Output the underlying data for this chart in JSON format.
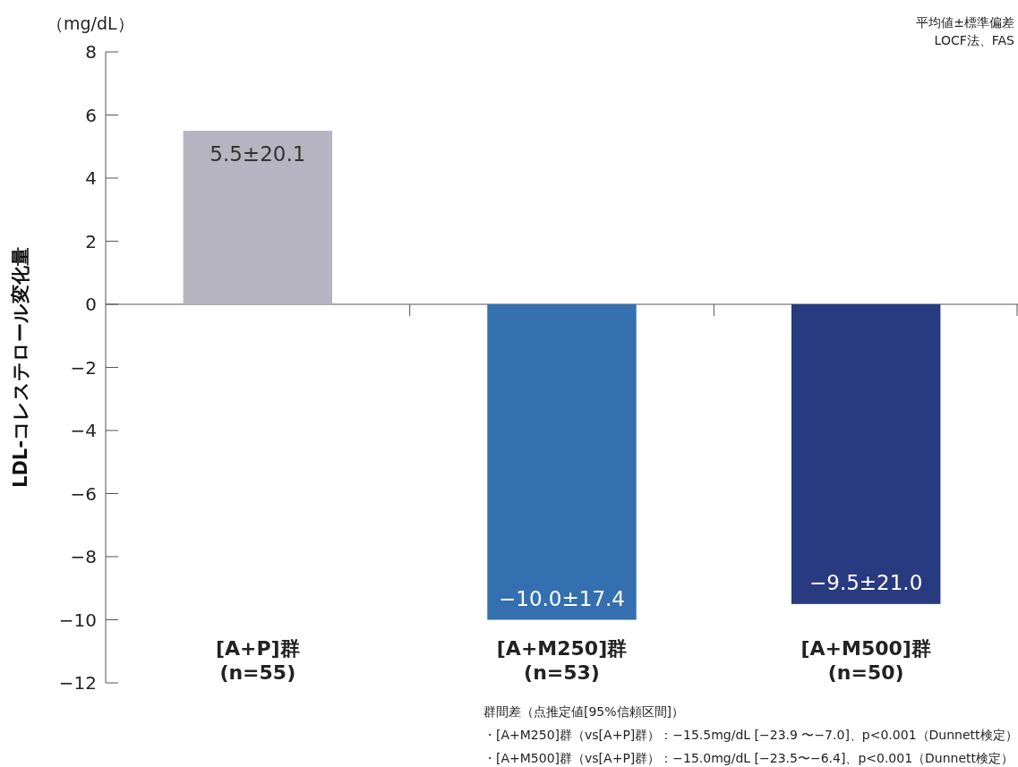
{
  "chart_data": {
    "type": "bar",
    "ylabel": "LDL-コレステロール変化量",
    "annotations": [
      "（mg/dL）",
      "平均値±標準偏差",
      "LOCF法、FAS",
      "群間差（点推定値[95%信頼区間]）",
      "・[A+M250]群（vs[A+P]群）：−15.5mg/dL [−23.9 〜−7.0]、p<0.001（Dunnett検定）",
      "・[A+M500]群（vs[A+P]群）：−15.0mg/dL [−23.5〜−6.4]、p<0.001（Dunnett検定）"
    ],
    "categories": [
      "[A+P]群\n(n=55)",
      "[A+M250]群\n(n=53)",
      "[A+M500]群\n(n=50)"
    ],
    "values": [
      5.5,
      -10.0,
      -9.5
    ],
    "colors": [
      "#b5b4c0",
      "#3470b0",
      "#283a80"
    ],
    "value_labels": [
      "5.5±20.1",
      "−10.0±17.4",
      "−9.5±21.0"
    ],
    "ylim": [
      -12,
      8
    ],
    "yticks": [
      {
        "value": -12,
        "label": "−12"
      },
      {
        "value": -10,
        "label": "−10"
      },
      {
        "value": -8,
        "label": "−8"
      },
      {
        "value": -6,
        "label": "−6"
      },
      {
        "value": -4,
        "label": "−4"
      },
      {
        "value": -2,
        "label": "−2"
      },
      0,
      2,
      4,
      6,
      8
    ]
  }
}
